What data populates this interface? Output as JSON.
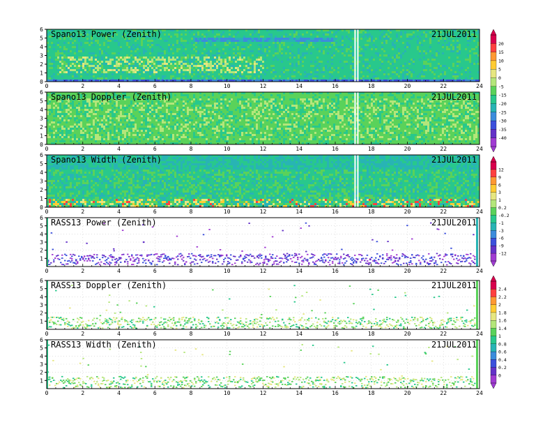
{
  "chart_data": [
    {
      "type": "heatmap",
      "title": "Spano13 Power (Zenith)",
      "date": "21JUL2011",
      "x_ticks": [
        0,
        2,
        4,
        6,
        8,
        10,
        12,
        14,
        16,
        18,
        20,
        22,
        24
      ],
      "y_ticks": [
        0,
        1,
        2,
        3,
        4,
        5,
        6
      ],
      "xlim": [
        0,
        24
      ],
      "ylim": [
        0,
        6
      ],
      "colorbar_labels": [
        "20",
        "15",
        "10",
        "5",
        "0",
        "-5",
        "-15",
        "-20",
        "-25",
        "-30",
        "-35",
        "-40"
      ],
      "colors": [
        "#d8004c",
        "#ff4040",
        "#ff9933",
        "#ffcc33",
        "#e6e680",
        "#b4e67a",
        "#5ad25a",
        "#28c88c",
        "#28b4b4",
        "#3c8cdc",
        "#3c50dc",
        "#6432c8",
        "#a03cd2"
      ],
      "pattern": "dense",
      "data_gaps_hours": [
        17.1
      ]
    },
    {
      "type": "heatmap",
      "title": "Spano13 Doppler (Zenith)",
      "date": "21JUL2011",
      "x_ticks": [
        0,
        2,
        4,
        6,
        8,
        10,
        12,
        14,
        16,
        18,
        20,
        22,
        24
      ],
      "y_ticks": [
        0,
        1,
        2,
        3,
        4,
        5,
        6
      ],
      "xlim": [
        0,
        24
      ],
      "ylim": [
        0,
        6
      ],
      "colorbar_labels": [
        "20",
        "15",
        "10",
        "5",
        "0",
        "-5",
        "-15",
        "-20",
        "-25",
        "-30",
        "-35",
        "-40"
      ],
      "colors": [
        "#d8004c",
        "#ff4040",
        "#ff9933",
        "#ffcc33",
        "#e6e680",
        "#b4e67a",
        "#5ad25a",
        "#28c88c",
        "#28b4b4",
        "#3c8cdc",
        "#3c50dc",
        "#6432c8",
        "#a03cd2"
      ],
      "pattern": "dense",
      "data_gaps_hours": [
        17.1
      ]
    },
    {
      "type": "heatmap",
      "title": "Spano13 Width (Zenith)",
      "date": "21JUL2011",
      "x_ticks": [
        0,
        2,
        4,
        6,
        8,
        10,
        12,
        14,
        16,
        18,
        20,
        22,
        24
      ],
      "y_ticks": [
        0,
        1,
        2,
        3,
        4,
        5,
        6
      ],
      "xlim": [
        0,
        24
      ],
      "ylim": [
        0,
        6
      ],
      "colorbar_labels": [
        "12",
        "9",
        "6",
        "3",
        "1",
        "0.2",
        "-0.2",
        "-1",
        "-3",
        "-6",
        "-9",
        "-12"
      ],
      "colors": [
        "#d8004c",
        "#ff4040",
        "#ff9933",
        "#ffcc33",
        "#e6e680",
        "#b4e67a",
        "#5ad25a",
        "#28c88c",
        "#28b4b4",
        "#3c8cdc",
        "#3c50dc",
        "#6432c8",
        "#a03cd2"
      ],
      "pattern": "dense",
      "data_gaps_hours": [
        17.1
      ]
    },
    {
      "type": "heatmap",
      "title": "RASS13 Power (Zenith)",
      "date": "21JUL2011",
      "x_ticks": [
        0,
        2,
        4,
        6,
        8,
        10,
        12,
        14,
        16,
        18,
        20,
        22,
        24
      ],
      "y_ticks": [
        1,
        2,
        3,
        4,
        5,
        6
      ],
      "xlim": [
        0,
        24
      ],
      "ylim": [
        0,
        6
      ],
      "colorbar_labels": [
        "12",
        "9",
        "6",
        "3",
        "1",
        "0.2",
        "-0.2",
        "-1",
        "-3",
        "-6",
        "-9",
        "-12"
      ],
      "colors": [
        "#d8004c",
        "#ff4040",
        "#ff9933",
        "#ffcc33",
        "#e6e680",
        "#b4e67a",
        "#5ad25a",
        "#28c88c",
        "#28b4b4",
        "#3c8cdc",
        "#3c50dc",
        "#6432c8",
        "#a03cd2"
      ],
      "pattern": "sparse",
      "band_height_km": 0.7
    },
    {
      "type": "heatmap",
      "title": "RASS13 Doppler (Zenith)",
      "date": "21JUL2011",
      "x_ticks": [
        0,
        2,
        4,
        6,
        8,
        10,
        12,
        14,
        16,
        18,
        20,
        22,
        24
      ],
      "y_ticks": [
        1,
        2,
        3,
        4,
        5,
        6
      ],
      "xlim": [
        0,
        24
      ],
      "ylim": [
        0,
        6
      ],
      "colorbar_labels": [
        "2.4",
        "2.2",
        "2",
        "1.8",
        "1.6",
        "1.4",
        "1",
        "0.8",
        "0.6",
        "0.4",
        "0.2",
        "0"
      ],
      "colors": [
        "#d8004c",
        "#ff4040",
        "#ff9933",
        "#ffcc33",
        "#e6e680",
        "#b4e67a",
        "#5ad25a",
        "#28c88c",
        "#28b4b4",
        "#3c8cdc",
        "#3c50dc",
        "#6432c8",
        "#a03cd2"
      ],
      "pattern": "sparse",
      "band_height_km": 0.6
    },
    {
      "type": "heatmap",
      "title": "RASS13 Width (Zenith)",
      "date": "21JUL2011",
      "x_ticks": [
        0,
        2,
        4,
        6,
        8,
        10,
        12,
        14,
        16,
        18,
        20,
        22,
        24
      ],
      "y_ticks": [
        1,
        2,
        3,
        4,
        5,
        6
      ],
      "xlim": [
        0,
        24
      ],
      "ylim": [
        0,
        6
      ],
      "colorbar_labels": [
        "2.4",
        "2.2",
        "2",
        "1.8",
        "1.6",
        "1.4",
        "1",
        "0.8",
        "0.6",
        "0.4",
        "0.2",
        "0"
      ],
      "colors": [
        "#d8004c",
        "#ff4040",
        "#ff9933",
        "#ffcc33",
        "#e6e680",
        "#b4e67a",
        "#5ad25a",
        "#28c88c",
        "#28b4b4",
        "#3c8cdc",
        "#3c50dc",
        "#6432c8",
        "#a03cd2"
      ],
      "pattern": "sparse",
      "band_height_km": 0.6
    }
  ]
}
